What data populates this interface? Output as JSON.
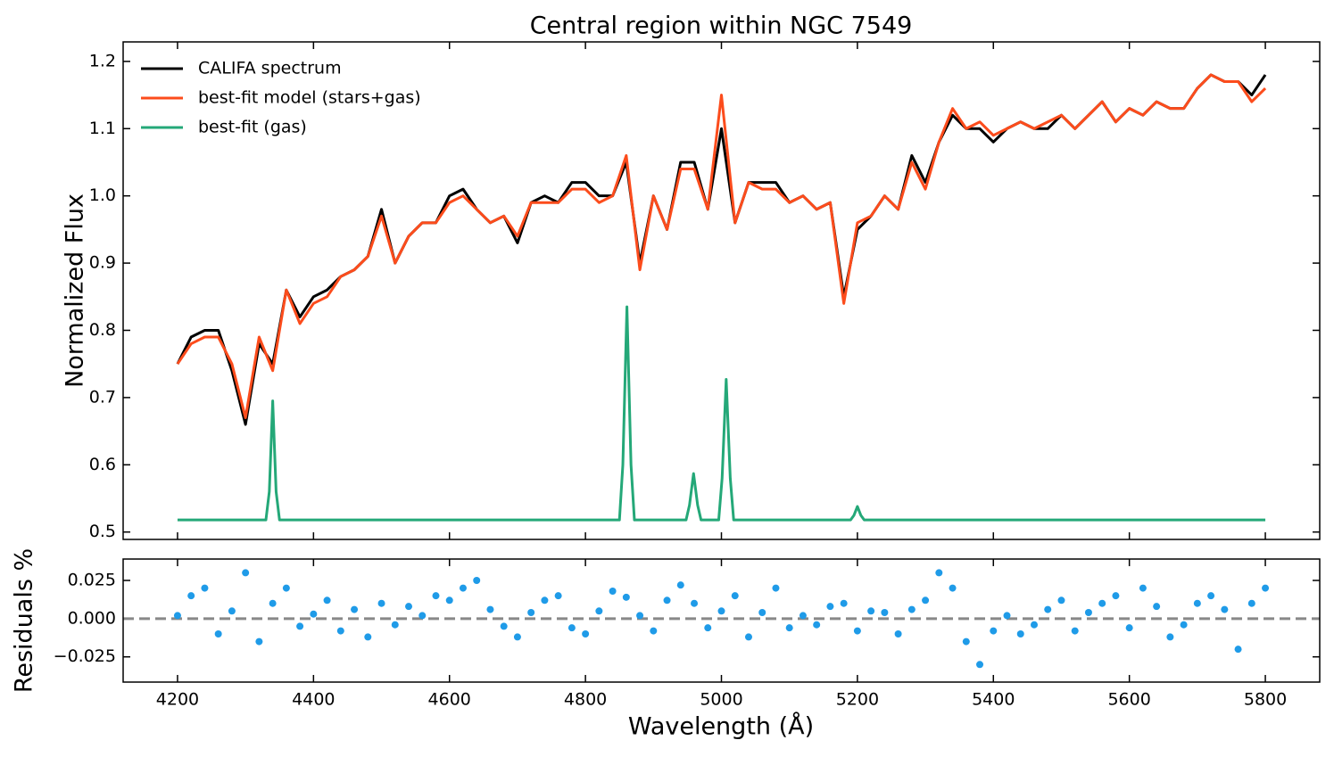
{
  "chart_data": [
    {
      "type": "line",
      "title": "Central region within NGC 7549",
      "ylabel": "Normalized Flux",
      "xlim": [
        4120,
        5880
      ],
      "xticks": [
        4200,
        4400,
        4600,
        4800,
        5000,
        5200,
        5400,
        5600,
        5800
      ],
      "ylim": [
        0.489,
        1.229
      ],
      "yticks": [
        0.5,
        0.6,
        0.7,
        0.8,
        0.9,
        {
          "value": 1,
          "label": "1.0"
        },
        1.1,
        1.2
      ],
      "legend": "upper left",
      "series": [
        {
          "name": "CALIFA spectrum",
          "color": "#000000",
          "x": [
            4200,
            4220,
            4240,
            4260,
            4280,
            4300,
            4320,
            4340,
            4360,
            4380,
            4400,
            4420,
            4440,
            4460,
            4480,
            4500,
            4520,
            4540,
            4560,
            4580,
            4600,
            4620,
            4640,
            4660,
            4680,
            4700,
            4720,
            4740,
            4760,
            4780,
            4800,
            4820,
            4840,
            4860,
            4880,
            4900,
            4920,
            4940,
            4960,
            4980,
            5000,
            5020,
            5040,
            5060,
            5080,
            5100,
            5120,
            5140,
            5160,
            5180,
            5200,
            5220,
            5240,
            5260,
            5280,
            5300,
            5320,
            5340,
            5360,
            5380,
            5400,
            5420,
            5440,
            5460,
            5480,
            5500,
            5520,
            5540,
            5560,
            5580,
            5600,
            5620,
            5640,
            5660,
            5680,
            5700,
            5720,
            5740,
            5760,
            5780,
            5800
          ],
          "values": [
            0.75,
            0.79,
            0.8,
            0.8,
            0.74,
            0.66,
            0.78,
            0.75,
            0.86,
            0.82,
            0.85,
            0.86,
            0.88,
            0.89,
            0.91,
            0.98,
            0.9,
            0.94,
            0.96,
            0.96,
            1.0,
            1.01,
            0.98,
            0.96,
            0.97,
            0.93,
            0.99,
            1.0,
            0.99,
            1.02,
            1.02,
            1.0,
            1.0,
            1.05,
            0.9,
            1.0,
            0.95,
            1.05,
            1.05,
            0.98,
            1.1,
            0.96,
            1.02,
            1.02,
            1.02,
            0.99,
            1.0,
            0.98,
            0.99,
            0.85,
            0.95,
            0.97,
            1.0,
            0.98,
            1.06,
            1.02,
            1.08,
            1.12,
            1.1,
            1.1,
            1.08,
            1.1,
            1.11,
            1.1,
            1.1,
            1.12,
            1.1,
            1.12,
            1.14,
            1.11,
            1.13,
            1.12,
            1.14,
            1.13,
            1.13,
            1.16,
            1.18,
            1.17,
            1.17,
            1.15,
            1.18
          ]
        },
        {
          "name": "best-fit model (stars+gas)",
          "color": "#fc4c1c",
          "x": [
            4200,
            4220,
            4240,
            4260,
            4280,
            4300,
            4320,
            4340,
            4360,
            4380,
            4400,
            4420,
            4440,
            4460,
            4480,
            4500,
            4520,
            4540,
            4560,
            4580,
            4600,
            4620,
            4640,
            4660,
            4680,
            4700,
            4720,
            4740,
            4760,
            4780,
            4800,
            4820,
            4840,
            4860,
            4880,
            4900,
            4920,
            4940,
            4960,
            4980,
            5000,
            5020,
            5040,
            5060,
            5080,
            5100,
            5120,
            5140,
            5160,
            5180,
            5200,
            5220,
            5240,
            5260,
            5280,
            5300,
            5320,
            5340,
            5360,
            5380,
            5400,
            5420,
            5440,
            5460,
            5480,
            5500,
            5520,
            5540,
            5560,
            5580,
            5600,
            5620,
            5640,
            5660,
            5680,
            5700,
            5720,
            5740,
            5760,
            5780,
            5800
          ],
          "values": [
            0.75,
            0.78,
            0.79,
            0.79,
            0.75,
            0.67,
            0.79,
            0.74,
            0.86,
            0.81,
            0.84,
            0.85,
            0.88,
            0.89,
            0.91,
            0.97,
            0.9,
            0.94,
            0.96,
            0.96,
            0.99,
            1.0,
            0.98,
            0.96,
            0.97,
            0.94,
            0.99,
            0.99,
            0.99,
            1.01,
            1.01,
            0.99,
            1.0,
            1.06,
            0.89,
            1.0,
            0.95,
            1.04,
            1.04,
            0.98,
            1.15,
            0.96,
            1.02,
            1.01,
            1.01,
            0.99,
            1.0,
            0.98,
            0.99,
            0.84,
            0.96,
            0.97,
            1.0,
            0.98,
            1.05,
            1.01,
            1.08,
            1.13,
            1.1,
            1.11,
            1.09,
            1.1,
            1.11,
            1.1,
            1.11,
            1.12,
            1.1,
            1.12,
            1.14,
            1.11,
            1.13,
            1.12,
            1.14,
            1.13,
            1.13,
            1.16,
            1.18,
            1.17,
            1.17,
            1.14,
            1.16
          ]
        },
        {
          "name": "best-fit (gas)",
          "color": "#24a878",
          "x": [
            4200,
            4330,
            4335,
            4340,
            4345,
            4350,
            4850,
            4855,
            4861,
            4867,
            4872,
            4948,
            4953,
            4959,
            4965,
            4970,
            4996,
            5001,
            5007,
            5013,
            5018,
            5190,
            5195,
            5200,
            5205,
            5210,
            5800
          ],
          "values": [
            0.518,
            0.518,
            0.56,
            0.695,
            0.56,
            0.518,
            0.518,
            0.6,
            0.835,
            0.6,
            0.518,
            0.518,
            0.54,
            0.587,
            0.54,
            0.518,
            0.518,
            0.58,
            0.727,
            0.58,
            0.518,
            0.518,
            0.525,
            0.538,
            0.525,
            0.518,
            0.518
          ]
        }
      ]
    },
    {
      "type": "scatter",
      "ylabel": "Residuals %",
      "xlabel": "Wavelength (Å)",
      "color": "#1f9be8",
      "xlim": [
        4120,
        5880
      ],
      "xticks": [
        4200,
        4400,
        4600,
        4800,
        5000,
        5200,
        5400,
        5600,
        5800
      ],
      "ylim": [
        -0.0415,
        0.039
      ],
      "yticks": [
        {
          "value": -0.025,
          "label": "−0.025"
        },
        {
          "value": 0,
          "label": "0.000"
        },
        0.025
      ],
      "hline": 0,
      "x": [
        4200,
        4220,
        4240,
        4260,
        4280,
        4300,
        4320,
        4340,
        4360,
        4380,
        4400,
        4420,
        4440,
        4460,
        4480,
        4500,
        4520,
        4540,
        4560,
        4580,
        4600,
        4620,
        4640,
        4660,
        4680,
        4700,
        4720,
        4740,
        4760,
        4780,
        4800,
        4820,
        4840,
        4860,
        4880,
        4900,
        4920,
        4940,
        4960,
        4980,
        5000,
        5020,
        5040,
        5060,
        5080,
        5100,
        5120,
        5140,
        5160,
        5180,
        5200,
        5220,
        5240,
        5260,
        5280,
        5300,
        5320,
        5340,
        5360,
        5380,
        5400,
        5420,
        5440,
        5460,
        5480,
        5500,
        5520,
        5540,
        5560,
        5580,
        5600,
        5620,
        5640,
        5660,
        5680,
        5700,
        5720,
        5740,
        5760,
        5780,
        5800
      ],
      "values": [
        0.002,
        0.015,
        0.02,
        -0.01,
        0.005,
        0.03,
        -0.015,
        0.01,
        0.02,
        -0.005,
        0.003,
        0.012,
        -0.008,
        0.006,
        -0.012,
        0.01,
        -0.004,
        0.008,
        0.002,
        0.015,
        0.012,
        0.02,
        0.025,
        0.006,
        -0.005,
        -0.012,
        0.004,
        0.012,
        0.015,
        -0.006,
        -0.01,
        0.005,
        0.018,
        0.014,
        0.002,
        -0.008,
        0.012,
        0.022,
        0.01,
        -0.006,
        0.005,
        0.015,
        -0.012,
        0.004,
        0.02,
        -0.006,
        0.002,
        -0.004,
        0.008,
        0.01,
        -0.008,
        0.005,
        0.004,
        -0.01,
        0.006,
        0.012,
        0.03,
        0.02,
        -0.015,
        -0.03,
        -0.008,
        0.002,
        -0.01,
        -0.004,
        0.006,
        0.012,
        -0.008,
        0.004,
        0.01,
        0.015,
        -0.006,
        0.02,
        0.008,
        -0.012,
        -0.004,
        0.01,
        0.015,
        0.006,
        -0.02,
        0.01,
        0.02
      ]
    }
  ]
}
